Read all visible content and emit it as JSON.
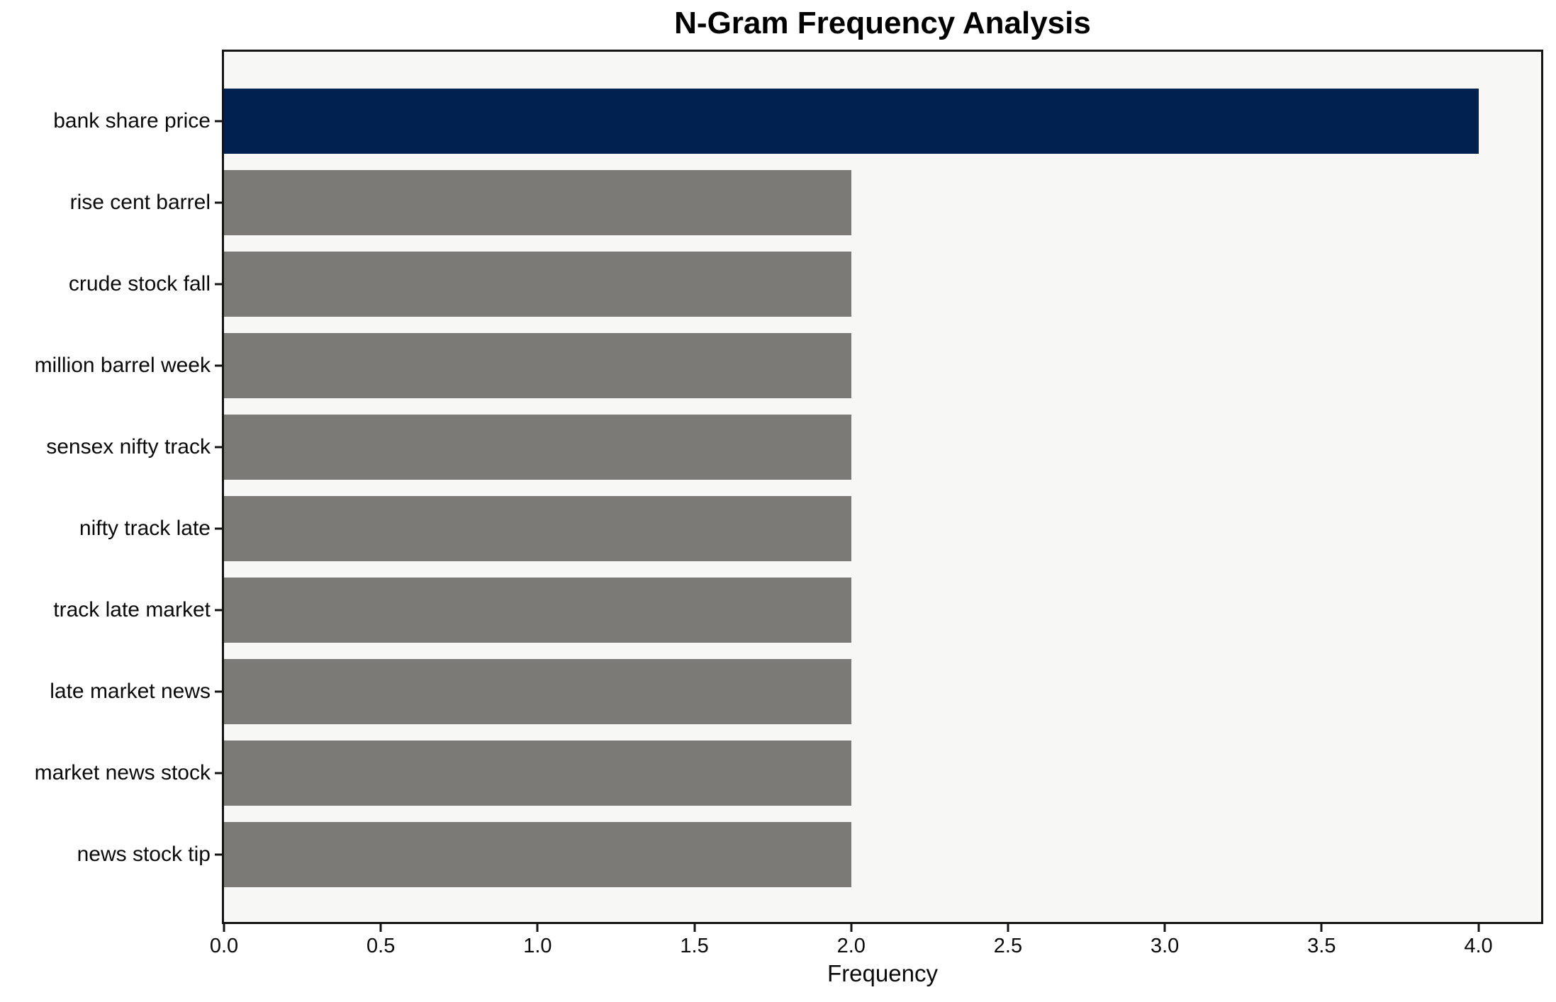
{
  "chart_data": {
    "type": "bar",
    "orientation": "horizontal",
    "title": "N-Gram Frequency Analysis",
    "xlabel": "Frequency",
    "ylabel": "",
    "categories": [
      "bank share price",
      "rise cent barrel",
      "crude stock fall",
      "million barrel week",
      "sensex nifty track",
      "nifty track late",
      "track late market",
      "late market news",
      "market news stock",
      "news stock tip"
    ],
    "values": [
      4,
      2,
      2,
      2,
      2,
      2,
      2,
      2,
      2,
      2
    ],
    "xlim": [
      0,
      4.2
    ],
    "x_ticks": [
      "0.0",
      "0.5",
      "1.0",
      "1.5",
      "2.0",
      "2.5",
      "3.0",
      "3.5",
      "4.0"
    ],
    "highlight_index": 0,
    "grid": false,
    "legend": false,
    "colors": {
      "highlight_bar": "#012250",
      "default_bar": "#7c7a76",
      "plot_background": "#f7f7f6",
      "page_background": "#ffffff",
      "spine": "#141414",
      "text": "#0a0a0a"
    }
  }
}
